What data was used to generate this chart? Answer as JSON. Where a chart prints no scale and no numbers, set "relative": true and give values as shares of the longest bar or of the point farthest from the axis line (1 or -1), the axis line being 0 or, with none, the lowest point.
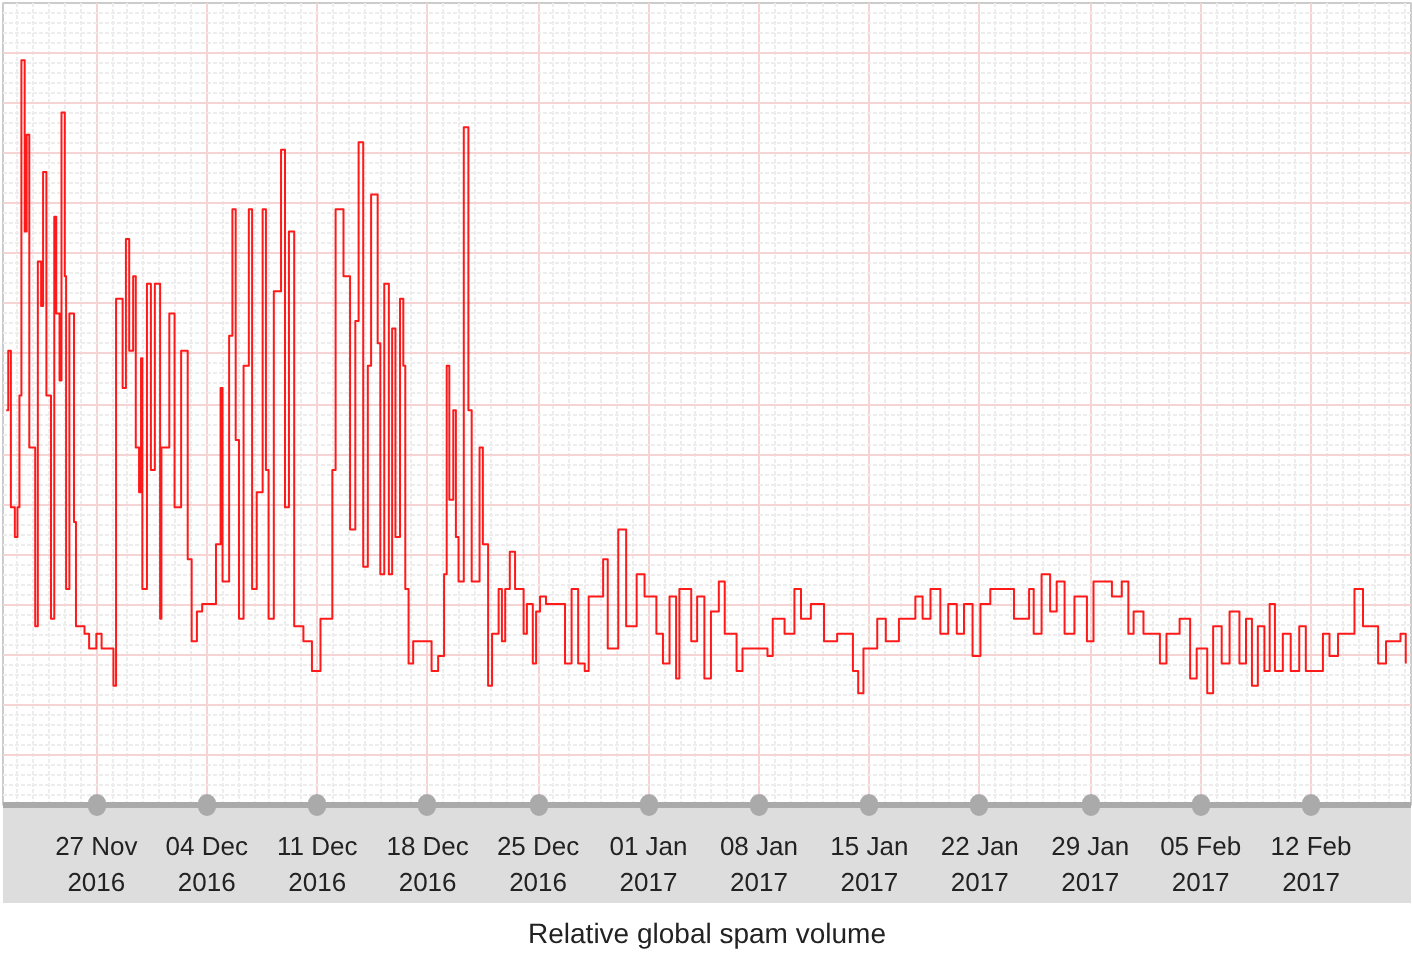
{
  "chart_data": {
    "type": "step",
    "title": "Relative global spam volume",
    "relative": true,
    "grid": true,
    "xlim": [
      "2016-11-21T02:00",
      "2017-02-18T08:00"
    ],
    "xticks": [
      {
        "value": "2016-11-27",
        "label": "27 Nov\n2016"
      },
      {
        "value": "2016-12-04",
        "label": "04 Dec\n2016"
      },
      {
        "value": "2016-12-11",
        "label": "11 Dec\n2016"
      },
      {
        "value": "2016-12-18",
        "label": "18 Dec\n2016"
      },
      {
        "value": "2016-12-25",
        "label": "25 Dec\n2016"
      },
      {
        "value": "2017-01-01",
        "label": "01 Jan\n2017"
      },
      {
        "value": "2017-01-08",
        "label": "08 Jan\n2017"
      },
      {
        "value": "2017-01-15",
        "label": "15 Jan\n2017"
      },
      {
        "value": "2017-01-22",
        "label": "22 Jan\n2017"
      },
      {
        "value": "2017-01-29",
        "label": "29 Jan\n2017"
      },
      {
        "value": "2017-02-05",
        "label": "05 Feb\n2017"
      },
      {
        "value": "2017-02-12",
        "label": "12 Feb\n2017"
      }
    ],
    "x": [
      "2016-11-21T07:00",
      "2016-11-21T10:00",
      "2016-11-21T14:00",
      "2016-11-21T20:00",
      "2016-11-22T00:00",
      "2016-11-22T03:00",
      "2016-11-22T06:00",
      "2016-11-22T11:00",
      "2016-11-22T14:00",
      "2016-11-22T18:00",
      "2016-11-23T03:00",
      "2016-11-23T07:00",
      "2016-11-23T12:00",
      "2016-11-23T15:00",
      "2016-11-23T20:00",
      "2016-11-24T03:00",
      "2016-11-24T08:00",
      "2016-11-24T11:00",
      "2016-11-24T16:00",
      "2016-11-24T19:00",
      "2016-11-25T00:00",
      "2016-11-25T02:00",
      "2016-11-25T07:00",
      "2016-11-25T14:00",
      "2016-11-25T17:00",
      "2016-11-26T06:00",
      "2016-11-26T13:00",
      "2016-11-27T00:00",
      "2016-11-27T08:00",
      "2016-11-28T02:00",
      "2016-11-28T06:00",
      "2016-11-28T16:00",
      "2016-11-28T21:00",
      "2016-11-29T02:00",
      "2016-11-29T08:00",
      "2016-11-29T12:00",
      "2016-11-29T17:00",
      "2016-11-29T20:00",
      "2016-11-29T22:00",
      "2016-11-30T05:00",
      "2016-11-30T11:00",
      "2016-11-30T17:00",
      "2016-12-01T01:00",
      "2016-12-01T03:00",
      "2016-12-01T15:00",
      "2016-12-01T23:00",
      "2016-12-02T09:00",
      "2016-12-02T19:00",
      "2016-12-03T01:00",
      "2016-12-03T09:00",
      "2016-12-03T17:00",
      "2016-12-04T14:00",
      "2016-12-04T21:00",
      "2016-12-05T00:00",
      "2016-12-05T10:00",
      "2016-12-05T15:00",
      "2016-12-05T20:00",
      "2016-12-06T01:00",
      "2016-12-06T08:00",
      "2016-12-06T16:00",
      "2016-12-06T21:00",
      "2016-12-07T04:00",
      "2016-12-07T13:00",
      "2016-12-07T18:00",
      "2016-12-07T22:00",
      "2016-12-08T06:00",
      "2016-12-08T17:00",
      "2016-12-08T23:00",
      "2016-12-09T05:00",
      "2016-12-09T13:00",
      "2016-12-10T03:00",
      "2016-12-10T16:00",
      "2016-12-11T05:00",
      "2016-12-11T23:00",
      "2016-12-12T04:00",
      "2016-12-12T16:00",
      "2016-12-13T02:00",
      "2016-12-13T10:00",
      "2016-12-13T15:00",
      "2016-12-13T22:00",
      "2016-12-14T05:00",
      "2016-12-14T10:00",
      "2016-12-14T20:00",
      "2016-12-15T00:00",
      "2016-12-15T06:00",
      "2016-12-15T13:00",
      "2016-12-15T18:00",
      "2016-12-15T23:00",
      "2016-12-16T06:00",
      "2016-12-16T11:00",
      "2016-12-16T14:00",
      "2016-12-16T19:00",
      "2016-12-17T02:00",
      "2016-12-18T06:00",
      "2016-12-18T16:00",
      "2016-12-19T01:00",
      "2016-12-19T05:00",
      "2016-12-19T09:00",
      "2016-12-19T15:00",
      "2016-12-19T19:00",
      "2016-12-19T23:00",
      "2016-12-20T07:00",
      "2016-12-20T14:00",
      "2016-12-20T19:00",
      "2016-12-21T07:00",
      "2016-12-21T12:00",
      "2016-12-21T20:00",
      "2016-12-22T02:00",
      "2016-12-22T12:00",
      "2016-12-22T17:00",
      "2016-12-22T22:00",
      "2016-12-23T05:00",
      "2016-12-23T13:00",
      "2016-12-24T02:00",
      "2016-12-24T07:00",
      "2016-12-24T16:00",
      "2016-12-24T21:00",
      "2016-12-25T03:00",
      "2016-12-25T12:00",
      "2016-12-26T09:00",
      "2016-12-26T17:00",
      "2016-12-27T03:00",
      "2016-12-27T13:00",
      "2016-12-27T23:00",
      "2016-12-28T05:00",
      "2016-12-29T03:00",
      "2016-12-29T10:00",
      "2016-12-30T02:00",
      "2016-12-30T14:00",
      "2016-12-31T06:00",
      "2016-12-31T18:00",
      "2017-01-01T12:00",
      "2017-01-01T22:00",
      "2017-01-02T08:00",
      "2017-01-02T18:00",
      "2017-01-02T23:00",
      "2017-01-03T17:00",
      "2017-01-04T02:00",
      "2017-01-04T13:00",
      "2017-01-04T23:00",
      "2017-01-05T11:00",
      "2017-01-05T20:00",
      "2017-01-06T14:00",
      "2017-01-06T23:00",
      "2017-01-07T17:00",
      "2017-01-08T13:00",
      "2017-01-08T21:00",
      "2017-01-09T15:00",
      "2017-01-10T06:00",
      "2017-01-10T16:00",
      "2017-01-11T07:00",
      "2017-01-12T03:00",
      "2017-01-12T23:00",
      "2017-01-13T23:00",
      "2017-01-14T07:00",
      "2017-01-14T15:00",
      "2017-01-15T12:00",
      "2017-01-16T01:00",
      "2017-01-16T21:00",
      "2017-01-17T22:00",
      "2017-01-18T09:00",
      "2017-01-18T21:00",
      "2017-01-19T12:00",
      "2017-01-20T00:00",
      "2017-01-20T13:00",
      "2017-01-21T00:00",
      "2017-01-21T13:00",
      "2017-01-22T01:00",
      "2017-01-22T16:00",
      "2017-01-24T04:00",
      "2017-01-25T03:00",
      "2017-01-25T10:00",
      "2017-01-25T22:00",
      "2017-01-26T11:00",
      "2017-01-26T21:00",
      "2017-01-27T09:00",
      "2017-01-28T00:00",
      "2017-01-28T19:00",
      "2017-01-29T05:00",
      "2017-01-30T09:00",
      "2017-01-31T00:00",
      "2017-01-31T10:00",
      "2017-01-31T18:00",
      "2017-02-01T09:00",
      "2017-02-02T10:00",
      "2017-02-02T20:00",
      "2017-02-03T16:00",
      "2017-02-04T08:00",
      "2017-02-04T18:00",
      "2017-02-05T10:00",
      "2017-02-05T19:00",
      "2017-02-06T08:00",
      "2017-02-06T20:00",
      "2017-02-07T11:00",
      "2017-02-07T21:00",
      "2017-02-08T06:00",
      "2017-02-08T15:00",
      "2017-02-09T01:00",
      "2017-02-09T09:00",
      "2017-02-09T17:00",
      "2017-02-10T05:00",
      "2017-02-10T17:00",
      "2017-02-11T06:00",
      "2017-02-11T16:00",
      "2017-02-12T18:00",
      "2017-02-13T04:00",
      "2017-02-13T17:00",
      "2017-02-14T18:00",
      "2017-02-15T07:00",
      "2017-02-16T06:00",
      "2017-02-16T18:00",
      "2017-02-17T16:00",
      "2017-02-18T00:00"
    ],
    "series": [
      {
        "color": "#ff1a1a",
        "values": [
          0.53,
          0.61,
          0.4,
          0.36,
          0.4,
          0.55,
          1.0,
          0.77,
          0.9,
          0.48,
          0.24,
          0.73,
          0.67,
          0.85,
          0.55,
          0.25,
          0.79,
          0.66,
          0.57,
          0.93,
          0.71,
          0.29,
          0.66,
          0.38,
          0.24,
          0.23,
          0.21,
          0.23,
          0.21,
          0.16,
          0.68,
          0.56,
          0.76,
          0.61,
          0.71,
          0.48,
          0.42,
          0.6,
          0.29,
          0.7,
          0.45,
          0.7,
          0.25,
          0.48,
          0.66,
          0.4,
          0.61,
          0.33,
          0.22,
          0.26,
          0.27,
          0.35,
          0.56,
          0.3,
          0.63,
          0.8,
          0.49,
          0.25,
          0.59,
          0.8,
          0.29,
          0.42,
          0.8,
          0.45,
          0.25,
          0.69,
          0.88,
          0.4,
          0.77,
          0.24,
          0.22,
          0.18,
          0.25,
          0.45,
          0.8,
          0.71,
          0.37,
          0.65,
          0.89,
          0.32,
          0.59,
          0.82,
          0.62,
          0.31,
          0.7,
          0.31,
          0.64,
          0.36,
          0.68,
          0.59,
          0.29,
          0.19,
          0.22,
          0.18,
          0.2,
          0.31,
          0.59,
          0.41,
          0.53,
          0.36,
          0.3,
          0.91,
          0.53,
          0.3,
          0.48,
          0.35,
          0.16,
          0.23,
          0.29,
          0.22,
          0.29,
          0.34,
          0.29,
          0.23,
          0.27,
          0.19,
          0.26,
          0.28,
          0.27,
          0.27,
          0.19,
          0.29,
          0.19,
          0.18,
          0.28,
          0.33,
          0.21,
          0.37,
          0.24,
          0.31,
          0.28,
          0.23,
          0.19,
          0.28,
          0.17,
          0.29,
          0.22,
          0.28,
          0.17,
          0.26,
          0.3,
          0.23,
          0.18,
          0.21,
          0.21,
          0.2,
          0.25,
          0.23,
          0.29,
          0.25,
          0.27,
          0.22,
          0.23,
          0.18,
          0.15,
          0.21,
          0.25,
          0.22,
          0.25,
          0.28,
          0.25,
          0.29,
          0.23,
          0.27,
          0.23,
          0.27,
          0.2,
          0.27,
          0.29,
          0.25,
          0.29,
          0.23,
          0.31,
          0.26,
          0.3,
          0.23,
          0.28,
          0.22,
          0.3,
          0.28,
          0.3,
          0.23,
          0.26,
          0.23,
          0.19,
          0.23,
          0.25,
          0.17,
          0.21,
          0.15,
          0.24,
          0.19,
          0.26,
          0.19,
          0.25,
          0.16,
          0.24,
          0.18,
          0.27,
          0.18,
          0.23,
          0.18,
          0.24,
          0.18,
          0.23,
          0.2,
          0.23,
          0.29,
          0.24,
          0.19,
          0.22,
          0.23,
          0.19
        ]
      }
    ]
  }
}
